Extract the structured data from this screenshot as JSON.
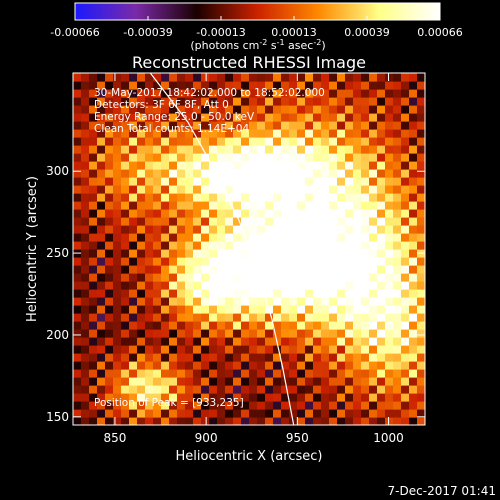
{
  "chart_data": {
    "type": "heatmap",
    "title": "Reconstructed RHESSI Image",
    "xlabel": "Heliocentric X (arcsec)",
    "ylabel": "Heliocentric Y (arcsec)",
    "xlim": [
      827,
      1020
    ],
    "ylim": [
      145,
      360
    ],
    "x_ticks": [
      850,
      900,
      950,
      1000
    ],
    "y_ticks": [
      150,
      200,
      250,
      300
    ],
    "colorbar": {
      "min": -0.00066,
      "max": 0.00066,
      "ticks": [
        "-0.00066",
        "-0.00039",
        "-0.00013",
        "0.00013",
        "0.00039",
        "0.00066"
      ],
      "units_text": "(photons cm",
      "units_sup1": "-2",
      "units_mid": " s",
      "units_sup2": "-1",
      "units_mid2": " asec",
      "units_sup3": "-2",
      "units_end": ")",
      "colormap": [
        "#1a1aff",
        "#7a2aa8",
        "#1a0000",
        "#cc2200",
        "#ff8800",
        "#ffff88",
        "#ffffff"
      ]
    },
    "info_lines": [
      "30-May-2017 18:42:02.000 to 18:52:02.000",
      "Detectors: 3F 6F 8F, Att 0",
      "Energy Range: 25.0 - 50.0 keV",
      "Clean     Total counts: 1.14E+04"
    ],
    "peak_text": "Position of Peak = [933,235]",
    "peak": [
      933,
      235
    ],
    "limb_points": [
      [
        868,
        362
      ],
      [
        890,
        330
      ],
      [
        905,
        300
      ],
      [
        918,
        270
      ],
      [
        928,
        240
      ],
      [
        936,
        210
      ],
      [
        942,
        180
      ],
      [
        948,
        145
      ]
    ],
    "emission_regions": [
      {
        "x": 918,
        "y": 300,
        "sx": 28,
        "sy": 14,
        "amp": 0.95
      },
      {
        "x": 930,
        "y": 240,
        "sx": 30,
        "sy": 22,
        "amp": 1.0
      },
      {
        "x": 955,
        "y": 285,
        "sx": 35,
        "sy": 40,
        "amp": 0.75
      },
      {
        "x": 985,
        "y": 240,
        "sx": 25,
        "sy": 35,
        "amp": 0.65
      },
      {
        "x": 1005,
        "y": 200,
        "sx": 20,
        "sy": 30,
        "amp": 0.55
      },
      {
        "x": 868,
        "y": 168,
        "sx": 14,
        "sy": 12,
        "amp": 0.8
      },
      {
        "x": 860,
        "y": 305,
        "sx": 20,
        "sy": 25,
        "amp": 0.4
      },
      {
        "x": 900,
        "y": 230,
        "sx": 15,
        "sy": 15,
        "amp": 0.5
      }
    ]
  },
  "footer": {
    "date": "7-Dec-2017 01:41"
  }
}
